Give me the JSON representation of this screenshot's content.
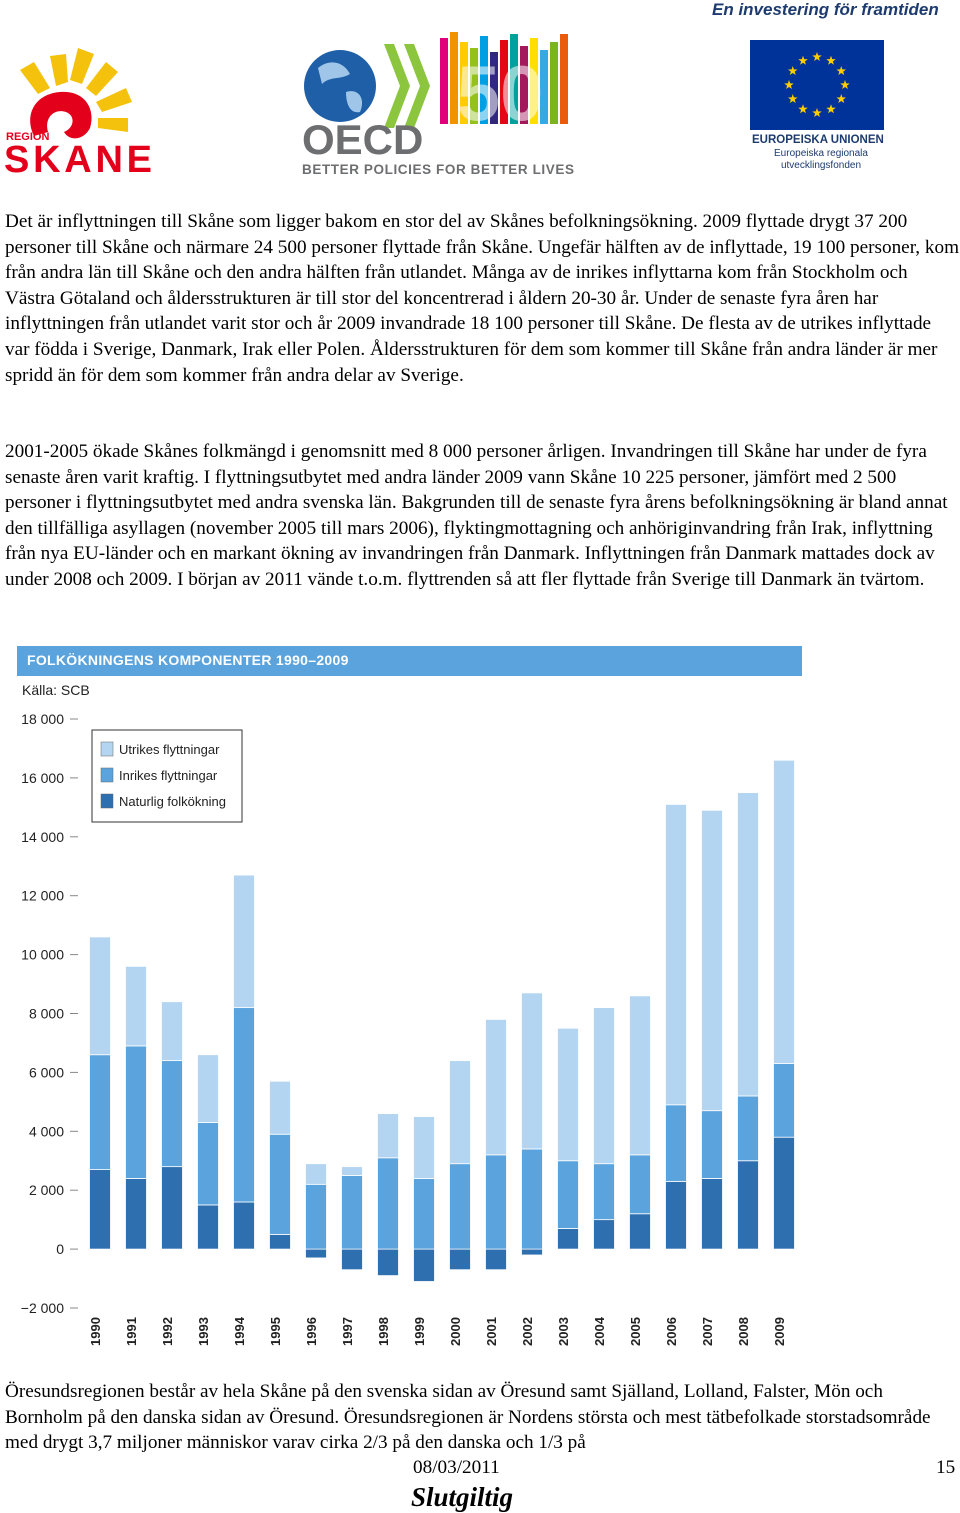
{
  "header": {
    "region_logo_label": "REGION",
    "region_logo_name": "SKANE",
    "oecd_logo_name": "OECD",
    "oecd_logo_number": "50",
    "oecd_tagline": "BETTER POLICIES FOR BETTER LIVES",
    "eu_tagline": "En investering för framtiden",
    "eu_name": "EUROPEISKA UNIONEN",
    "eu_fund_line1": "Europeiska regionala",
    "eu_fund_line2": "utvecklingsfonden"
  },
  "paragraphs": {
    "p1": "Det är inflyttningen till Skåne som ligger bakom en stor del av Skånes befolkningsökning. 2009 flyttade drygt 37 200 personer till Skåne och närmare 24 500 personer flyttade från Skåne. Ungefär hälften av de inflyttade, 19 100 personer, kom från andra län till Skåne och den andra hälften från utlandet. Många av de inrikes inflyttarna kom från Stockholm och Västra Götaland och åldersstrukturen är till stor del koncentrerad i åldern 20-30 år. Under de senaste fyra åren har inflyttningen från utlandet varit stor och år 2009 invandrade 18 100 personer till Skåne. De flesta av de utrikes inflyttade var födda i Sverige, Danmark, Irak eller Polen. Åldersstrukturen för dem som kommer till Skåne från andra länder är mer spridd än för dem som kommer från andra delar av Sverige.",
    "p2": "2001-2005 ökade Skånes folkmängd i genomsnitt med 8 000 personer årligen. Invandringen till Skåne har under de fyra senaste åren varit kraftig. I flyttningsutbytet med andra länder 2009 vann Skåne 10 225 personer, jämfört med 2 500 personer i flyttningsutbytet med andra svenska län. Bakgrunden till de senaste fyra årens befolkningsökning är bland annat den tillfälliga asyllagen (november 2005 till mars 2006), flyktingmottagning och anhöriginvandring från Irak, inflyttning från nya EU-länder och en markant ökning av invandringen från Danmark. Inflyttningen från Danmark mattades dock av under 2008 och 2009. I början av 2011 vände t.o.m. flyttrenden så att fler flyttade från Sverige till Danmark än tvärtom.",
    "p3": "Öresundsregionen består av hela Skåne på den svenska sidan av Öresund samt Själland, Lolland, Falster, Mön och Bornholm på den danska sidan av Öresund. Öresundsregionen är Nordens största och mest tätbefolkade storstadsområde med drygt 3,7 miljoner människor varav cirka 2/3 på den danska och 1/3 på"
  },
  "chart_data": {
    "type": "bar",
    "stacked": true,
    "title": "FOLKÖKNINGENS KOMPONENTER 1990–2009",
    "source": "Källa: SCB",
    "categories": [
      "1990",
      "1991",
      "1992",
      "1993",
      "1994",
      "1995",
      "1996",
      "1997",
      "1998",
      "1999",
      "2000",
      "2001",
      "2002",
      "2003",
      "2004",
      "2005",
      "2006",
      "2007",
      "2008",
      "2009"
    ],
    "ylim": [
      -2000,
      18000
    ],
    "yticks": [
      -2000,
      0,
      2000,
      4000,
      6000,
      8000,
      10000,
      12000,
      14000,
      16000,
      18000
    ],
    "ytick_labels": [
      "−2 000",
      "0",
      "2 000",
      "4 000",
      "6 000",
      "8 000",
      "10 000",
      "12 000",
      "14 000",
      "16 000",
      "18 000"
    ],
    "legend_position": "top-left",
    "series": [
      {
        "name": "Naturlig folkökning",
        "color": "#2e6fb0",
        "values": [
          2700,
          2400,
          2800,
          1500,
          1600,
          500,
          -300,
          -700,
          -900,
          -1100,
          -700,
          -700,
          -200,
          700,
          1000,
          1200,
          2300,
          2400,
          3000,
          3800
        ]
      },
      {
        "name": "Inrikes flyttningar",
        "color": "#5ba3dd",
        "values": [
          3900,
          4500,
          3600,
          2800,
          6600,
          3400,
          2200,
          2500,
          3100,
          2400,
          2900,
          3200,
          3400,
          2300,
          1900,
          2000,
          2600,
          2300,
          2200,
          2500
        ]
      },
      {
        "name": "Utrikes flyttningar",
        "color": "#b3d5f1",
        "values": [
          4000,
          2700,
          2000,
          2300,
          4500,
          1800,
          700,
          300,
          1500,
          2100,
          3500,
          4600,
          5300,
          4500,
          5300,
          5400,
          10200,
          10200,
          10300,
          10300
        ]
      }
    ],
    "grid": false
  },
  "footer": {
    "date": "08/03/2011",
    "page": "15",
    "status": "Slutgiltig"
  }
}
